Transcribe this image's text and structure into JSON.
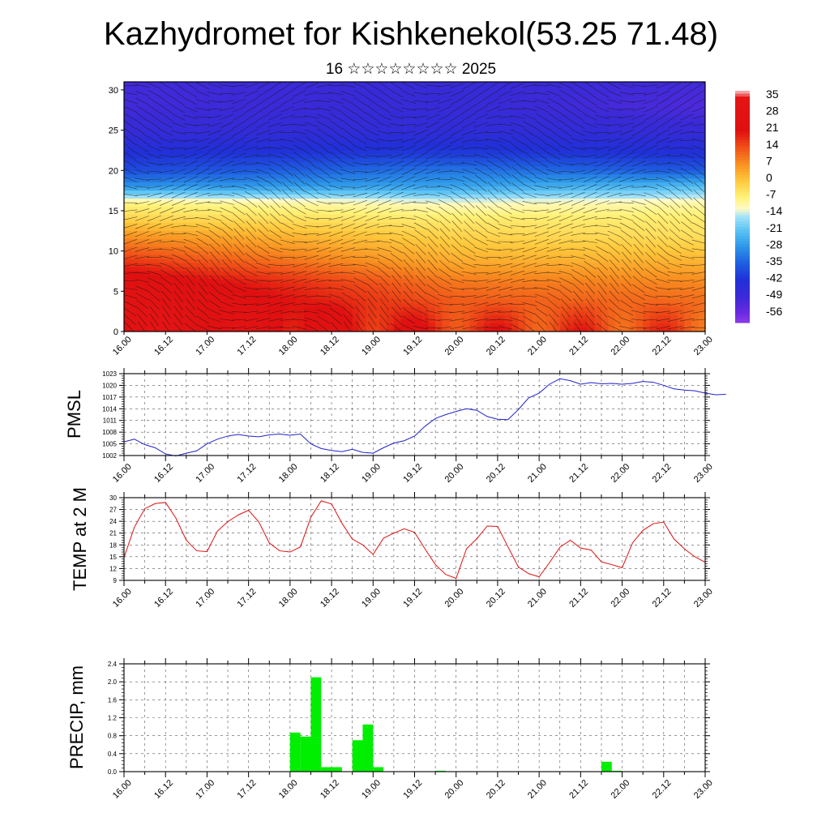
{
  "header": {
    "title": "Kazhydromet for Kishkenekol(53.25 71.48)",
    "subtitle": "16 ☆☆☆☆☆☆☆☆ 2025"
  },
  "x_tick_labels": [
    "16.00",
    "16.12",
    "17.00",
    "17.12",
    "18.00",
    "18.12",
    "19.00",
    "19.12",
    "20.00",
    "20.12",
    "21.00",
    "21.12",
    "22.00",
    "22.12",
    "23.00"
  ],
  "chart_data": [
    {
      "type": "heatmap",
      "name": "temperature-height-section",
      "x_range": [
        0,
        168
      ],
      "ylim": [
        0,
        31
      ],
      "y_ticks": [
        0,
        5,
        10,
        15,
        20,
        25,
        30
      ],
      "colorbar": {
        "labels": [
          "35",
          "28",
          "21",
          "14",
          "7",
          "0",
          "-7",
          "-14",
          "-21",
          "-28",
          "-35",
          "-42",
          "-49",
          "-56"
        ],
        "stops": [
          {
            "v": 38,
            "color": "#f6c8c8"
          },
          {
            "v": 35,
            "color": "#e61414"
          },
          {
            "v": 21,
            "color": "#e01010"
          },
          {
            "v": 14,
            "color": "#f05018"
          },
          {
            "v": 7,
            "color": "#f89020"
          },
          {
            "v": 0,
            "color": "#ffc83c"
          },
          {
            "v": -7,
            "color": "#fff278"
          },
          {
            "v": -12,
            "color": "#fffac8"
          },
          {
            "v": -15,
            "color": "#a8e4f8"
          },
          {
            "v": -21,
            "color": "#5cc4f4"
          },
          {
            "v": -28,
            "color": "#2c96e8"
          },
          {
            "v": -35,
            "color": "#1e5ee0"
          },
          {
            "v": -42,
            "color": "#2030d8"
          },
          {
            "v": -49,
            "color": "#3a2ad8"
          },
          {
            "v": -56,
            "color": "#6a2ae0"
          },
          {
            "v": -60,
            "color": "#8a3ae8"
          }
        ]
      },
      "sample_temperatures": {
        "heights_km": [
          0,
          3,
          6,
          9,
          12,
          14,
          16,
          18,
          20,
          22,
          25,
          28,
          31
        ],
        "day0": [
          30,
          30,
          26,
          16,
          6,
          -2,
          -8,
          -28,
          -38,
          -42,
          -48,
          -50,
          -50
        ],
        "day4": [
          18,
          14,
          10,
          3,
          -2,
          -6,
          -12,
          -26,
          -32,
          -40,
          -46,
          -48,
          -48
        ],
        "day7": [
          14,
          12,
          8,
          2,
          -4,
          -6,
          -10,
          -22,
          -36,
          -42,
          -48,
          -52,
          -50
        ]
      }
    },
    {
      "type": "line",
      "name": "PMSL",
      "ylabel": "PMSL",
      "color": "#2222cc",
      "ylim": [
        1002,
        1023
      ],
      "y_ticks": [
        1002,
        1005,
        1008,
        1011,
        1014,
        1017,
        1020,
        1023
      ],
      "x_step_hours": 3,
      "values": [
        1005.5,
        1006.2,
        1004.8,
        1004.0,
        1002.4,
        1001.9,
        1002.6,
        1003.2,
        1005.0,
        1006.2,
        1007.0,
        1007.4,
        1007.0,
        1006.8,
        1007.3,
        1007.5,
        1007.2,
        1007.5,
        1005.0,
        1003.8,
        1003.3,
        1003.0,
        1003.6,
        1002.8,
        1002.6,
        1004.0,
        1005.2,
        1005.8,
        1007.0,
        1009.5,
        1011.5,
        1012.5,
        1013.3,
        1014.0,
        1013.6,
        1012.0,
        1011.3,
        1011.2,
        1013.8,
        1016.8,
        1018.0,
        1020.3,
        1021.7,
        1021.2,
        1020.3,
        1020.7,
        1020.4,
        1020.5,
        1020.3,
        1020.5,
        1021.0,
        1020.8,
        1020.0,
        1019.1,
        1018.8,
        1018.6,
        1018.0,
        1017.6,
        1017.7
      ]
    },
    {
      "type": "line",
      "name": "TEMP at 2 M",
      "ylabel": "TEMP at 2 M",
      "color": "#dd1111",
      "ylim": [
        9,
        30
      ],
      "y_ticks": [
        9,
        12,
        15,
        18,
        21,
        24,
        27,
        30
      ],
      "x_step_hours": 3,
      "values": [
        14.8,
        22.5,
        27.2,
        28.5,
        28.8,
        24.8,
        19.2,
        16.5,
        16.3,
        21.5,
        23.9,
        25.6,
        26.8,
        23.8,
        18.5,
        16.5,
        16.2,
        17.5,
        25.0,
        29.2,
        28.4,
        23.5,
        19.5,
        18.0,
        15.6,
        19.7,
        21.0,
        22.1,
        21.2,
        17.0,
        13.0,
        10.5,
        9.5,
        17.0,
        19.6,
        22.8,
        22.7,
        17.5,
        12.4,
        10.7,
        9.9,
        13.5,
        17.4,
        19.2,
        17.2,
        16.7,
        13.7,
        13.0,
        12.2,
        18.5,
        21.7,
        23.4,
        23.8,
        19.5,
        17.0,
        15.0,
        13.6
      ]
    },
    {
      "type": "bar",
      "name": "PRECIP",
      "ylabel": "PRECIP, mm",
      "color": "#00ee00",
      "ylim": [
        0,
        2.4
      ],
      "y_ticks": [
        "0.0",
        "0.4",
        "0.8",
        "1.2",
        "1.6",
        "2.0",
        "2.4"
      ],
      "x_step_hours": 3,
      "values": [
        0,
        0,
        0,
        0,
        0,
        0,
        0,
        0,
        0,
        0,
        0,
        0,
        0,
        0,
        0,
        0,
        0.87,
        0.78,
        2.1,
        0.1,
        0.1,
        0,
        0.7,
        1.05,
        0.1,
        0,
        0,
        0,
        0,
        0,
        0.02,
        0,
        0,
        0,
        0,
        0,
        0,
        0,
        0,
        0,
        0,
        0,
        0,
        0,
        0,
        0,
        0.22,
        0.02,
        0,
        0,
        0,
        0,
        0,
        0,
        0,
        0,
        0
      ]
    }
  ]
}
